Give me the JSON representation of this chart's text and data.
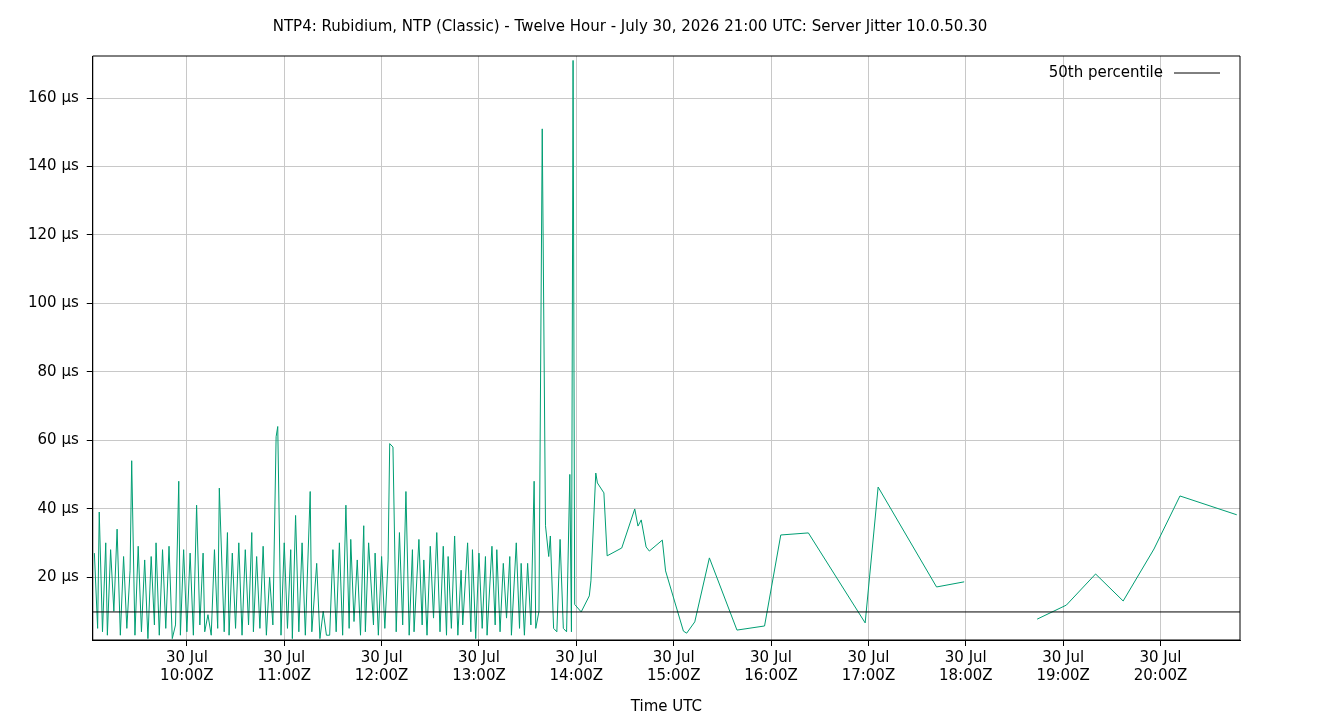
{
  "chart_data": {
    "type": "line",
    "title": "NTP4: Rubidium, NTP (Classic) - Twelve Hour - July 30, 2026 21:00 UTC: Server Jitter 10.0.50.30",
    "xlabel": "Time UTC",
    "xlim": [
      "2026-07-30T09:02",
      "2026-07-30T20:49"
    ],
    "ylim": [
      1.6,
      172.3
    ],
    "xticks": [
      {
        "value": "2026-07-30T10:00",
        "label": "30 Jul\n10:00Z"
      },
      {
        "value": "2026-07-30T11:00",
        "label": "30 Jul\n11:00Z"
      },
      {
        "value": "2026-07-30T12:00",
        "label": "30 Jul\n12:00Z"
      },
      {
        "value": "2026-07-30T13:00",
        "label": "30 Jul\n13:00Z"
      },
      {
        "value": "2026-07-30T14:00",
        "label": "30 Jul\n14:00Z"
      },
      {
        "value": "2026-07-30T15:00",
        "label": "30 Jul\n15:00Z"
      },
      {
        "value": "2026-07-30T16:00",
        "label": "30 Jul\n16:00Z"
      },
      {
        "value": "2026-07-30T17:00",
        "label": "30 Jul\n17:00Z"
      },
      {
        "value": "2026-07-30T18:00",
        "label": "30 Jul\n18:00Z"
      },
      {
        "value": "2026-07-30T19:00",
        "label": "30 Jul\n19:00Z"
      },
      {
        "value": "2026-07-30T20:00",
        "label": "30 Jul\n20:00Z"
      }
    ],
    "yticks": [
      {
        "value": 20,
        "label": "20 µs"
      },
      {
        "value": 40,
        "label": "40 µs"
      },
      {
        "value": 60,
        "label": "60 µs"
      },
      {
        "value": 80,
        "label": "80 µs"
      },
      {
        "value": 100,
        "label": "100 µs"
      },
      {
        "value": 120,
        "label": "120 µs"
      },
      {
        "value": 140,
        "label": "140 µs"
      },
      {
        "value": 160,
        "label": "160 µs"
      }
    ],
    "grid": true,
    "legend": "top right",
    "marker": "none",
    "series": [
      {
        "name": "50th percentile",
        "color": "#000000",
        "x": [
          "2026-07-30T09:02",
          "2026-07-30T20:49"
        ],
        "values": [
          9.8,
          9.8
        ]
      },
      {
        "color": "#009e73",
        "x": [
          "2026-07-30T09:03",
          "2026-07-30T09:05",
          "2026-07-30T09:06",
          "2026-07-30T09:08",
          "2026-07-30T09:10",
          "2026-07-30T09:11",
          "2026-07-30T09:13",
          "2026-07-30T09:15",
          "2026-07-30T09:17",
          "2026-07-30T09:19",
          "2026-07-30T09:21",
          "2026-07-30T09:23",
          "2026-07-30T09:25",
          "2026-07-30T09:26",
          "2026-07-30T09:28",
          "2026-07-30T09:30",
          "2026-07-30T09:32",
          "2026-07-30T09:34",
          "2026-07-30T09:36",
          "2026-07-30T09:38",
          "2026-07-30T09:40",
          "2026-07-30T09:41",
          "2026-07-30T09:43",
          "2026-07-30T09:45",
          "2026-07-30T09:47",
          "2026-07-30T09:49",
          "2026-07-30T09:51",
          "2026-07-30T09:53",
          "2026-07-30T09:55",
          "2026-07-30T09:56",
          "2026-07-30T09:58",
          "2026-07-30T10:00",
          "2026-07-30T10:02",
          "2026-07-30T10:04",
          "2026-07-30T10:06",
          "2026-07-30T10:08",
          "2026-07-30T10:10",
          "2026-07-30T10:11",
          "2026-07-30T10:13",
          "2026-07-30T10:15",
          "2026-07-30T10:17",
          "2026-07-30T10:19",
          "2026-07-30T10:20",
          "2026-07-30T10:23",
          "2026-07-30T10:25",
          "2026-07-30T10:26",
          "2026-07-30T10:28",
          "2026-07-30T10:30",
          "2026-07-30T10:32",
          "2026-07-30T10:34",
          "2026-07-30T10:36",
          "2026-07-30T10:38",
          "2026-07-30T10:40",
          "2026-07-30T10:41",
          "2026-07-30T10:43",
          "2026-07-30T10:45",
          "2026-07-30T10:47",
          "2026-07-30T10:49",
          "2026-07-30T10:51",
          "2026-07-30T10:53",
          "2026-07-30T10:55",
          "2026-07-30T10:56",
          "2026-07-30T10:58",
          "2026-07-30T11:00",
          "2026-07-30T11:02",
          "2026-07-30T11:04",
          "2026-07-30T11:05",
          "2026-07-30T11:07",
          "2026-07-30T11:09",
          "2026-07-30T11:11",
          "2026-07-30T11:13",
          "2026-07-30T11:16",
          "2026-07-30T11:17",
          "2026-07-30T11:20",
          "2026-07-30T11:22",
          "2026-07-30T11:24",
          "2026-07-30T11:26",
          "2026-07-30T11:28",
          "2026-07-30T11:30",
          "2026-07-30T11:32",
          "2026-07-30T11:34",
          "2026-07-30T11:36",
          "2026-07-30T11:38",
          "2026-07-30T11:40",
          "2026-07-30T11:41",
          "2026-07-30T11:43",
          "2026-07-30T11:45",
          "2026-07-30T11:47",
          "2026-07-30T11:49",
          "2026-07-30T11:50",
          "2026-07-30T11:52",
          "2026-07-30T11:55",
          "2026-07-30T11:56",
          "2026-07-30T11:58",
          "2026-07-30T12:00",
          "2026-07-30T12:02",
          "2026-07-30T12:04",
          "2026-07-30T12:05",
          "2026-07-30T12:07",
          "2026-07-30T12:09",
          "2026-07-30T12:11",
          "2026-07-30T12:13",
          "2026-07-30T12:15",
          "2026-07-30T12:17",
          "2026-07-30T12:19",
          "2026-07-30T12:20",
          "2026-07-30T12:23",
          "2026-07-30T12:25",
          "2026-07-30T12:26",
          "2026-07-30T12:28",
          "2026-07-30T12:30",
          "2026-07-30T12:32",
          "2026-07-30T12:34",
          "2026-07-30T12:36",
          "2026-07-30T12:38",
          "2026-07-30T12:40",
          "2026-07-30T12:41",
          "2026-07-30T12:43",
          "2026-07-30T12:45",
          "2026-07-30T12:47",
          "2026-07-30T12:49",
          "2026-07-30T12:50",
          "2026-07-30T12:53",
          "2026-07-30T12:55",
          "2026-07-30T12:56",
          "2026-07-30T12:58",
          "2026-07-30T13:00",
          "2026-07-30T13:02",
          "2026-07-30T13:04",
          "2026-07-30T13:05",
          "2026-07-30T13:08",
          "2026-07-30T13:10",
          "2026-07-30T13:11",
          "2026-07-30T13:13",
          "2026-07-30T13:15",
          "2026-07-30T13:17",
          "2026-07-30T13:19",
          "2026-07-30T13:20",
          "2026-07-30T13:23",
          "2026-07-30T13:25",
          "2026-07-30T13:26",
          "2026-07-30T13:28",
          "2026-07-30T13:30",
          "2026-07-30T13:32",
          "2026-07-30T13:34",
          "2026-07-30T13:35",
          "2026-07-30T13:37",
          "2026-07-30T13:39",
          "2026-07-30T13:41",
          "2026-07-30T13:43",
          "2026-07-30T13:44",
          "2026-07-30T13:46",
          "2026-07-30T13:48",
          "2026-07-30T13:50",
          "2026-07-30T13:52",
          "2026-07-30T13:54",
          "2026-07-30T13:56",
          "2026-07-30T13:57",
          "2026-07-30T13:58",
          "2026-07-30T13:59",
          "2026-07-30T14:03",
          "2026-07-30T14:08",
          "2026-07-30T14:09",
          "2026-07-30T14:12",
          "2026-07-30T14:13",
          "2026-07-30T14:17",
          "2026-07-30T14:19",
          "2026-07-30T14:28",
          "2026-07-30T14:36",
          "2026-07-30T14:38",
          "2026-07-30T14:40",
          "2026-07-30T14:43",
          "2026-07-30T14:45",
          "2026-07-30T14:53",
          "2026-07-30T14:55",
          "2026-07-30T15:06",
          "2026-07-30T15:08",
          "2026-07-30T15:13",
          "2026-07-30T15:22",
          "2026-07-30T15:39",
          "2026-07-30T15:56",
          "2026-07-30T16:06",
          "2026-07-30T16:23",
          "2026-07-30T16:58",
          "2026-07-30T17:06",
          "2026-07-30T17:42",
          "2026-07-30T17:59",
          "2026-07-30T18:18",
          "2026-07-30T18:44",
          "2026-07-30T19:02",
          "2026-07-30T19:20",
          "2026-07-30T19:37",
          "2026-07-30T19:56",
          "2026-07-30T20:12",
          "2026-07-30T20:47"
        ],
        "values": [
          27,
          5,
          39,
          4,
          30,
          3,
          28,
          10,
          34,
          3,
          26,
          5,
          22,
          54,
          3,
          29,
          4,
          25,
          2,
          26,
          6,
          30,
          3,
          28,
          5,
          29,
          2,
          6,
          48,
          3,
          28,
          4,
          27,
          3,
          41,
          6,
          27,
          4,
          9,
          3,
          28,
          5,
          46,
          4,
          33,
          3,
          27,
          5,
          30,
          3,
          28,
          6,
          33,
          4,
          26,
          5,
          29,
          3,
          20,
          6,
          61,
          64,
          3,
          30,
          5,
          28,
          2,
          38,
          4,
          30,
          3,
          45,
          4,
          24,
          2,
          10,
          3,
          3,
          28,
          4,
          30,
          3,
          41,
          5,
          31,
          7,
          25,
          3,
          35,
          4,
          30,
          6,
          27,
          3,
          26,
          5,
          25,
          59,
          58,
          4,
          33,
          6,
          45,
          3,
          28,
          4,
          31,
          6,
          25,
          3,
          29,
          8,
          33,
          4,
          29,
          3,
          26,
          5,
          32,
          3,
          22,
          6,
          30,
          4,
          28,
          2,
          27,
          5,
          26,
          3,
          29,
          6,
          28,
          4,
          24,
          8,
          26,
          3,
          30,
          5,
          24,
          3,
          24,
          6,
          48,
          5,
          10,
          151,
          35,
          26,
          32,
          5,
          4,
          31,
          5,
          4,
          50,
          4,
          171,
          12,
          9.8,
          14.5,
          18.9,
          50.4,
          47.5,
          44.6,
          26.2,
          28.5,
          39.9,
          34.9,
          36.7,
          28.8,
          27.6,
          30.8,
          21.8,
          4.2,
          3.6,
          6.9,
          25.6,
          4.5,
          5.7,
          32.3,
          32.9,
          6.6,
          46.3,
          17.1,
          18.6,
          null,
          7.7,
          11.8,
          20.9,
          13.0,
          28.2,
          43.7,
          38.2
        ]
      }
    ]
  }
}
